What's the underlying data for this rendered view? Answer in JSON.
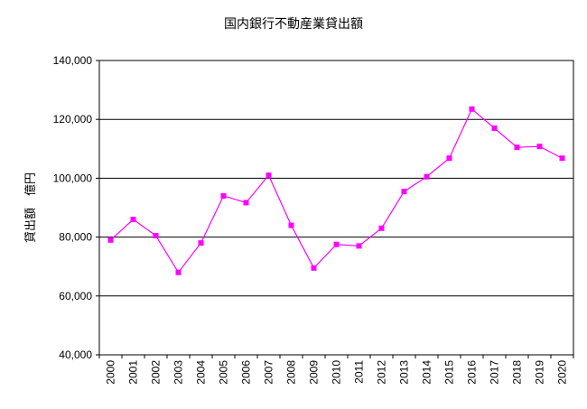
{
  "chart_data": {
    "type": "line",
    "title": "国内銀行不動産業貸出額",
    "xlabel": "",
    "ylabel": "貸出額　億円",
    "ylim": [
      40000,
      140000
    ],
    "yticks": [
      40000,
      60000,
      80000,
      100000,
      120000,
      140000
    ],
    "ytick_labels": [
      "40,000",
      "60,000",
      "80,000",
      "100,000",
      "120,000",
      "140,000"
    ],
    "grid": "horizontal",
    "categories": [
      "2000",
      "2001",
      "2002",
      "2003",
      "2004",
      "2005",
      "2006",
      "2007",
      "2008",
      "2009",
      "2010",
      "2011",
      "2012",
      "2013",
      "2014",
      "2015",
      "2016",
      "2017",
      "2018",
      "2019",
      "2020"
    ],
    "series": [
      {
        "values": [
          79000,
          86000,
          80500,
          68000,
          78000,
          94000,
          91700,
          101000,
          84000,
          69500,
          77500,
          77000,
          83000,
          95500,
          100500,
          106800,
          123500,
          117000,
          110500,
          110800,
          106800
        ],
        "color": "#ff00ff",
        "marker": "square"
      }
    ]
  }
}
